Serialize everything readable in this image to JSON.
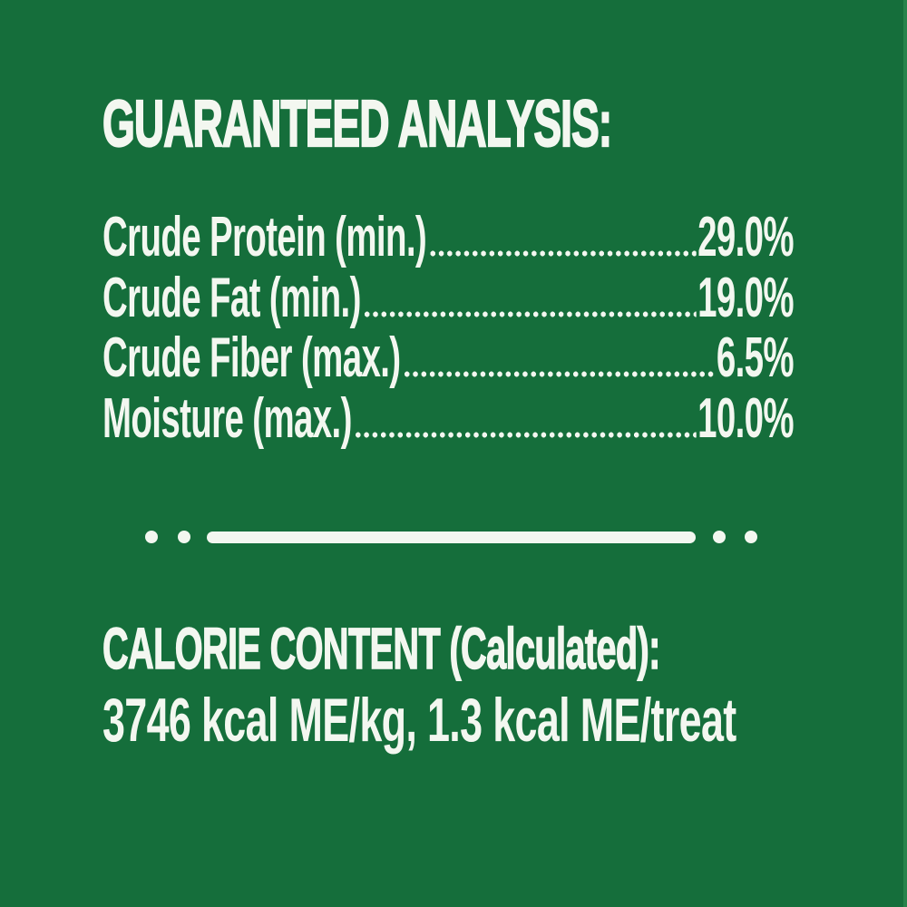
{
  "colors": {
    "background": "#156e3b",
    "text": "#f3f7f0"
  },
  "guaranteed_analysis": {
    "heading": "GUARANTEED ANALYSIS:",
    "rows": [
      {
        "label": "Crude Protein (min.)",
        "value": "29.0%"
      },
      {
        "label": "Crude Fat (min.)",
        "value": "19.0%"
      },
      {
        "label": "Crude Fiber (max.)",
        "value": "6.5%"
      },
      {
        "label": "Moisture (max.)",
        "value": "10.0%"
      }
    ]
  },
  "calorie_content": {
    "heading": "CALORIE CONTENT (Calculated):",
    "line": "3746 kcal ME/kg, 1.3 kcal ME/treat"
  }
}
